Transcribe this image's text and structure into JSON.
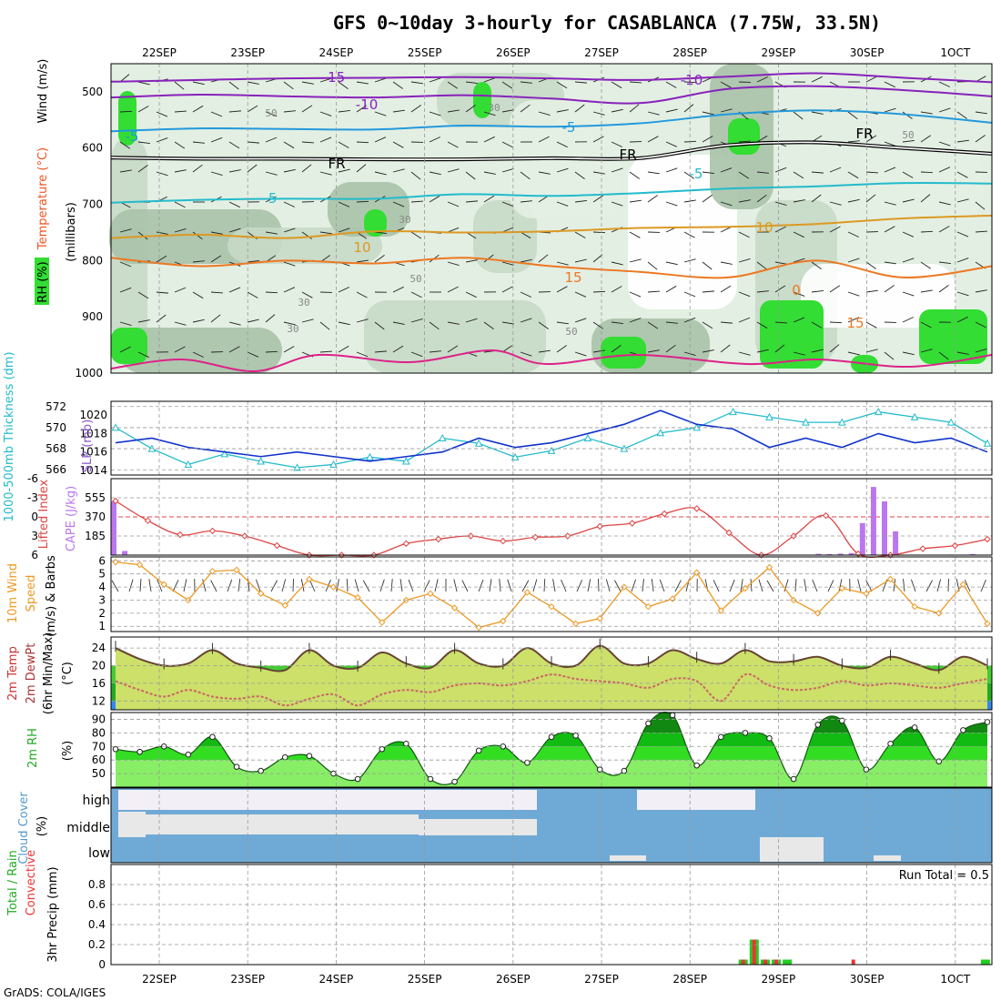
{
  "title": "GFS 0~10day 3-hourly for CASABLANCA (7.75W, 33.5N)",
  "credit": "GrADS: COLA/IGES",
  "colors": {
    "rh_light": "#e3efe3",
    "rh_mid": "#c7d9c7",
    "rh_dark": "#a9c2a9",
    "rh_green": "#33dd33",
    "thickness": "#22bbcc",
    "slp": "#1133cc",
    "cape": "#bb77ee",
    "lifted": "#dd4444",
    "wind": "#ee9922",
    "temp_fill": "#eeee55",
    "temp_line": "#664433",
    "dew": "#cc6666",
    "rh2m": "#22cc22",
    "cloud": "#6faad6",
    "cloud_gap": "#f3eff7",
    "precip_total": "#22cc22",
    "precip_conv": "#ee3333"
  },
  "chart_data": [
    {
      "type": "heatmap",
      "panel": "cross-section",
      "ylabel_parts": [
        "RH (%)",
        "Temperature (°C)",
        "Wind (m/s)"
      ],
      "yunit": "(millibars)",
      "yticks": [
        500,
        600,
        700,
        800,
        900,
        1000
      ],
      "ylim": [
        1000,
        450
      ],
      "x_dates": [
        "22SEP",
        "23SEP",
        "24SEP",
        "25SEP",
        "26SEP",
        "27SEP",
        "28SEP",
        "29SEP",
        "30SEP",
        "1OCT"
      ],
      "x_dates_top": [
        "22SEP",
        "23SEP",
        "24SEP",
        "25SEP",
        "26SEP",
        "27SEP",
        "28SEP",
        "29SEP",
        "30SEP",
        "1OCT"
      ],
      "isotherm_labels": [
        "-15",
        "-10",
        "-10",
        "-5",
        "-5",
        "FR",
        "FR",
        "FR",
        "FR",
        "-5",
        "-5",
        "10",
        "10",
        "15",
        "15",
        "0"
      ],
      "rh_labels": [
        "30",
        "30",
        "50",
        "50",
        "30",
        "30",
        "50",
        "50"
      ],
      "isotherms": [
        {
          "label": "-15",
          "color": "#8822bb",
          "pressure": [
            482,
            479,
            476,
            475,
            474,
            476,
            479,
            473,
            467,
            475,
            483
          ]
        },
        {
          "label": "-10",
          "color": "#8822bb",
          "pressure": [
            510,
            505,
            508,
            510,
            506,
            512,
            520,
            495,
            490,
            497,
            508
          ]
        },
        {
          "label": "-5",
          "color": "#2299dd",
          "pressure": [
            570,
            565,
            566,
            567,
            560,
            562,
            556,
            540,
            533,
            540,
            555
          ]
        },
        {
          "label": "FR",
          "color": "#000000",
          "pressure": [
            617,
            619,
            619,
            620,
            620,
            618,
            618,
            595,
            590,
            600,
            610
          ]
        },
        {
          "label": "-5",
          "color": "#22bbcc",
          "pressure": [
            697,
            692,
            690,
            690,
            682,
            685,
            680,
            672,
            668,
            662,
            663
          ]
        },
        {
          "label": "10",
          "color": "#dd9922",
          "pressure": [
            760,
            754,
            760,
            748,
            750,
            748,
            742,
            740,
            735,
            725,
            720
          ]
        },
        {
          "label": "15",
          "color": "#ee7722",
          "pressure": [
            795,
            810,
            800,
            805,
            795,
            810,
            820,
            830,
            800,
            830,
            810
          ]
        }
      ]
    },
    {
      "type": "line",
      "panel": "thickness-slp",
      "series": [
        {
          "name": "1000-500mb Thickness (dm)",
          "axis": "left",
          "values": [
            570,
            568,
            566.5,
            567.5,
            566.8,
            566.2,
            566.5,
            567.2,
            566.8,
            569,
            568.5,
            567.2,
            567.8,
            569,
            568,
            569.5,
            570,
            571.5,
            571,
            570.5,
            570.5,
            571.5,
            571,
            570.5,
            568.5
          ]
        },
        {
          "name": "SLP (mb)",
          "axis": "right",
          "values": [
            1017,
            1017.5,
            1016.5,
            1016,
            1015.5,
            1016,
            1015.5,
            1015,
            1015.5,
            1016,
            1017.5,
            1016.5,
            1017,
            1018,
            1019,
            1020.5,
            1019,
            1018.5,
            1016.5,
            1017.5,
            1016.5,
            1018,
            1017,
            1017.5,
            1016
          ]
        }
      ],
      "yticks_left": [
        566,
        568,
        570,
        572
      ],
      "ylim_left": [
        565.5,
        572.5
      ],
      "yticks_right": [
        1014,
        1016,
        1018,
        1020
      ],
      "ylim_right": [
        1013.5,
        1021.5
      ]
    },
    {
      "type": "bar",
      "panel": "cape-lifted",
      "series_cape": {
        "name": "CAPE (J/kg)",
        "x_hours": [
          0,
          3,
          192,
          195,
          198,
          201,
          204,
          207,
          210,
          213,
          228,
          234
        ],
        "values": [
          520,
          40,
          12,
          10,
          14,
          20,
          310,
          660,
          520,
          230,
          5,
          10
        ]
      },
      "series_lifted": {
        "name": "Lifted Index",
        "values": [
          -2.5,
          0.6,
          2.8,
          2.2,
          3.0,
          4.5,
          6.0,
          6.4,
          6.0,
          4.2,
          3.5,
          3.0,
          3.8,
          3.2,
          3.0,
          1.5,
          1.0,
          -0.5,
          -1.3,
          2.5,
          6.5,
          3.0,
          -0.2,
          5.8,
          6.2,
          5.0,
          4.5,
          3.5
        ]
      },
      "yticks_left": [
        -6,
        -3,
        0,
        3,
        6
      ],
      "ylim_left": [
        -6,
        6
      ],
      "yticks_right": [
        185,
        370,
        555
      ],
      "ylim_right": [
        0,
        740
      ]
    },
    {
      "type": "line",
      "panel": "wind10m",
      "series": [
        {
          "name": "10m Wind Speed & Barbs",
          "values": [
            5.9,
            5.7,
            4.2,
            3.0,
            5.2,
            5.3,
            3.5,
            2.6,
            4.6,
            4.0,
            3.2,
            1.3,
            3.0,
            3.5,
            2.4,
            0.9,
            1.4,
            3.6,
            2.5,
            1.2,
            1.6,
            4.0,
            2.5,
            3.1,
            5.1,
            2.2,
            3.9,
            5.5,
            3.0,
            2.0,
            3.9,
            3.5,
            4.6,
            2.5,
            2.0,
            4.2,
            1.2
          ]
        }
      ],
      "yticks": [
        1,
        2,
        3,
        4,
        5,
        6
      ],
      "ylim": [
        0.6,
        6.3
      ]
    },
    {
      "type": "area",
      "panel": "temp2m",
      "series": [
        {
          "name": "2m Temp",
          "values": [
            24.0,
            21.5,
            20.0,
            20.5,
            23.5,
            20.5,
            19.5,
            19.0,
            23.5,
            20.0,
            19.5,
            23.0,
            20.5,
            19.5,
            23.5,
            20.5,
            20.0,
            24.0,
            20.5,
            20.0,
            24.5,
            20.5,
            20.5,
            23.5,
            21.5,
            20.5,
            23.5,
            21.0,
            21.0,
            22.0,
            20.0,
            19.5,
            22.0,
            20.5,
            19.0,
            22.0,
            20.0
          ]
        },
        {
          "name": "2m DewPt",
          "values": [
            16.5,
            14.5,
            13.0,
            14.5,
            13.0,
            12.5,
            13.0,
            11.0,
            12.5,
            13.5,
            11.0,
            13.5,
            14.5,
            14.0,
            15.5,
            16.0,
            15.5,
            16.5,
            18.0,
            17.0,
            16.5,
            16.0,
            15.0,
            17.0,
            16.5,
            12.0,
            18.0,
            15.5,
            14.5,
            15.0,
            16.5,
            15.5,
            16.0,
            15.5,
            15.0,
            16.0,
            17.0
          ]
        }
      ],
      "yticks": [
        12,
        16,
        20,
        24
      ],
      "ylim": [
        10,
        26.5
      ]
    },
    {
      "type": "area",
      "panel": "rh2m",
      "series": [
        {
          "name": "2m RH",
          "values": [
            68,
            66,
            70,
            64,
            77,
            55,
            52,
            62,
            63,
            50,
            46,
            68,
            72,
            46,
            44,
            67,
            70,
            58,
            77,
            78,
            53,
            52,
            87,
            93,
            56,
            77,
            80,
            76,
            46,
            86,
            89,
            53,
            72,
            84,
            59,
            82,
            88
          ]
        }
      ],
      "yticks": [
        50,
        60,
        70,
        80,
        90
      ],
      "ylim": [
        40,
        95
      ]
    },
    {
      "type": "heatmap",
      "panel": "cloud",
      "rows": [
        "high",
        "middle",
        "low"
      ],
      "ylabel": "Cloud Cover (%)"
    },
    {
      "type": "bar",
      "panel": "precip",
      "ylabel": "3hr Precip (mm)",
      "legend": [
        "Total / Rain",
        "Convective"
      ],
      "series": [
        {
          "name": "Total / Rain",
          "x_hours": [
            171,
            174,
            177,
            180,
            183,
            237
          ],
          "values": [
            0.05,
            0.25,
            0.05,
            0.05,
            0.05,
            0.05
          ]
        },
        {
          "name": "Convective",
          "x_hours": [
            171,
            174,
            177,
            180,
            201
          ],
          "values": [
            0.05,
            0.25,
            0.05,
            0.05,
            0.05
          ]
        }
      ],
      "run_total": "Run Total = 0.5",
      "yticks": [
        0,
        0.2,
        0.4,
        0.6,
        0.8
      ],
      "ylim": [
        0,
        1
      ]
    }
  ],
  "panel_labels": {
    "rh": "RH (%)",
    "temperature": "Temperature (°C)",
    "wind": "Wind (m/s)",
    "millibars": "(millibars)",
    "thickness": "1000-500mb Thickness (dm)",
    "slp": "SLP (mb)",
    "lifted": "Lifted Index",
    "cape": "CAPE (J/kg)",
    "wind10": "10m Wind",
    "speed": "Speed",
    "barbs": "(m/s) & Barbs",
    "temp2m": "2m Temp",
    "dew2m": "2m DewPt",
    "minmax": "(6hr Min/Max)",
    "degc": "(°C)",
    "rh2m": "2m RH",
    "pct": "(%)",
    "cloud": "Cloud Cover",
    "precip": "3hr Precip (mm)",
    "total_rain": "Total / Rain",
    "convective": "Convective"
  }
}
